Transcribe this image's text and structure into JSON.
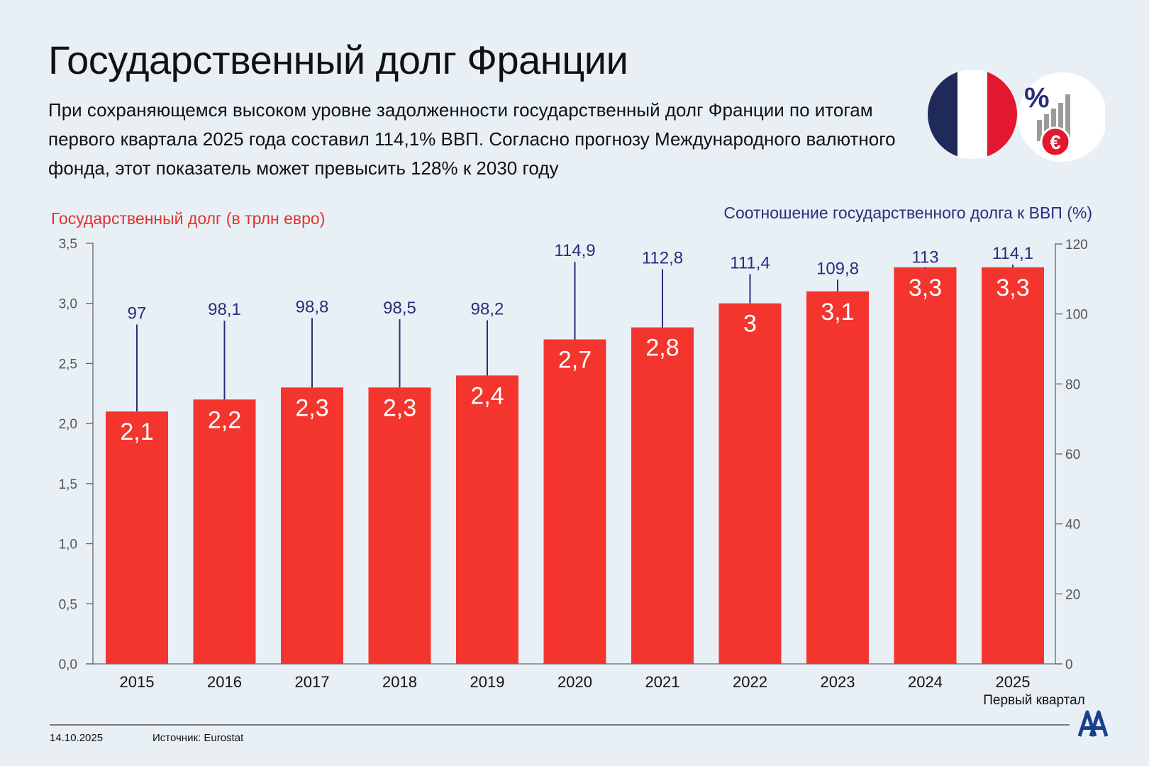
{
  "header": {
    "title": "Государственный долг Франции",
    "subtitle": "При сохраняющемся высоком уровне задолженности государственный долг  Франции по итогам первого квартала 2025 года составил 114,1% ВВП. Согласно прогнозу Международного валютного фонда, этот показатель может превысить 128% к 2030 году"
  },
  "icons": {
    "flag": "france-flag-icon",
    "finance": "percent-euro-growth-icon",
    "flag_colors": [
      "#1f2a5a",
      "#ffffff",
      "#e3172d"
    ],
    "percent_symbol": "%",
    "euro_symbol": "€"
  },
  "chart_data": {
    "type": "bar",
    "categories": [
      "2015",
      "2016",
      "2017",
      "2018",
      "2019",
      "2020",
      "2021",
      "2022",
      "2023",
      "2024",
      "2025"
    ],
    "category_sublabels": [
      "",
      "",
      "",
      "",
      "",
      "",
      "",
      "",
      "",
      "",
      "Первый квартал"
    ],
    "series": [
      {
        "name": "Государственный долг (в трлн евро)",
        "axis": "left",
        "type": "bar",
        "values": [
          2.1,
          2.2,
          2.3,
          2.3,
          2.4,
          2.7,
          2.8,
          3.0,
          3.1,
          3.3,
          3.3
        ],
        "labels": [
          "2,1",
          "2,2",
          "2,3",
          "2,3",
          "2,4",
          "2,7",
          "2,8",
          "3",
          "3,1",
          "3,3",
          "3,3"
        ],
        "color": "#f4352e"
      },
      {
        "name": "Соотношение государственного долга к ВВП (%)",
        "axis": "right",
        "type": "lollipop",
        "values": [
          97,
          98.1,
          98.8,
          98.5,
          98.2,
          114.9,
          112.8,
          111.4,
          109.8,
          113,
          114.1
        ],
        "labels": [
          "97",
          "98,1",
          "98,8",
          "98,5",
          "98,2",
          "114,9",
          "112,8",
          "111,4",
          "109,8",
          "113",
          "114,1"
        ],
        "color": "#2b2d7c"
      }
    ],
    "left_axis": {
      "label": "Государственный долг (в трлн евро)",
      "range": [
        0,
        3.5
      ],
      "ticks": [
        "0,0",
        "0,5",
        "1,0",
        "1,5",
        "2,0",
        "2,5",
        "3,0",
        "3,5"
      ],
      "color": "#e8302a"
    },
    "right_axis": {
      "label": "Соотношение государственного долга к ВВП (%)",
      "range": [
        0,
        120
      ],
      "ticks": [
        "0",
        "20",
        "40",
        "60",
        "80",
        "100",
        "120"
      ],
      "color": "#2b2d7c"
    },
    "grid": false
  },
  "footer": {
    "date": "14.10.2025",
    "source": "Источник: Eurostat",
    "logo": "aa-logo-icon",
    "logo_color": "#1c3f8c"
  }
}
